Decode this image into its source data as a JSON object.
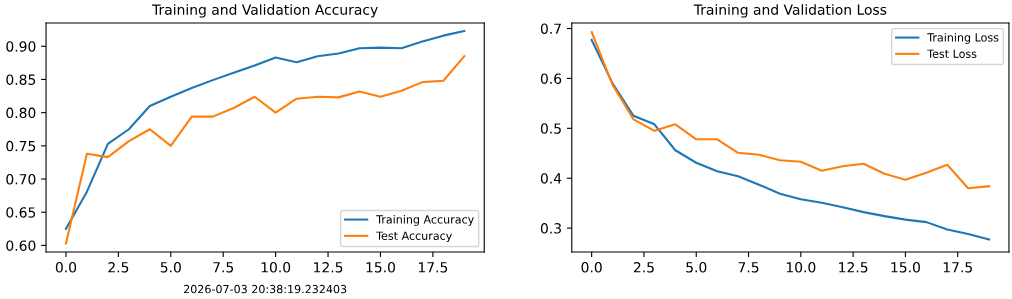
{
  "chart_data": [
    {
      "type": "line",
      "title": "Training and Validation Accuracy",
      "x": [
        0,
        1,
        2,
        3,
        4,
        5,
        6,
        7,
        8,
        9,
        10,
        11,
        12,
        13,
        14,
        15,
        16,
        17,
        18,
        19
      ],
      "series": [
        {
          "name": "Training Accuracy",
          "color": "#1f77b4",
          "values": [
            0.625,
            0.681,
            0.753,
            0.775,
            0.81,
            0.824,
            0.837,
            0.849,
            0.86,
            0.871,
            0.883,
            0.876,
            0.885,
            0.889,
            0.897,
            0.898,
            0.897,
            0.907,
            0.916,
            0.923
          ]
        },
        {
          "name": "Test Accuracy",
          "color": "#ff7f0e",
          "values": [
            0.603,
            0.738,
            0.733,
            0.757,
            0.775,
            0.75,
            0.794,
            0.794,
            0.807,
            0.824,
            0.8,
            0.821,
            0.824,
            0.823,
            0.832,
            0.824,
            0.833,
            0.846,
            0.848,
            0.885
          ]
        }
      ],
      "xlim": [
        -0.95,
        19.95
      ],
      "xticks": [
        {
          "value": 0,
          "label": "0.0"
        },
        {
          "value": 2.5,
          "label": "2.5"
        },
        {
          "value": 5,
          "label": "5.0"
        },
        {
          "value": 7.5,
          "label": "7.5"
        },
        {
          "value": 10,
          "label": "10.0"
        },
        {
          "value": 12.5,
          "label": "12.5"
        },
        {
          "value": 15,
          "label": "15.0"
        },
        {
          "value": 17.5,
          "label": "17.5"
        }
      ],
      "ylim": [
        0.59,
        0.935
      ],
      "yticks": [
        {
          "value": 0.6,
          "label": "0.60"
        },
        {
          "value": 0.65,
          "label": "0.65"
        },
        {
          "value": 0.7,
          "label": "0.70"
        },
        {
          "value": 0.75,
          "label": "0.75"
        },
        {
          "value": 0.8,
          "label": "0.80"
        },
        {
          "value": 0.85,
          "label": "0.85"
        },
        {
          "value": 0.9,
          "label": "0.90"
        }
      ],
      "legend": "bottom right",
      "grid": false,
      "annotations": [
        "2026-07-03 20:38:19.232403"
      ]
    },
    {
      "type": "line",
      "title": "Training and Validation Loss",
      "x": [
        0,
        1,
        2,
        3,
        4,
        5,
        6,
        7,
        8,
        9,
        10,
        11,
        12,
        13,
        14,
        15,
        16,
        17,
        18,
        19
      ],
      "series": [
        {
          "name": "Training Loss",
          "color": "#1f77b4",
          "values": [
            0.677,
            0.59,
            0.525,
            0.508,
            0.456,
            0.431,
            0.414,
            0.404,
            0.387,
            0.369,
            0.358,
            0.351,
            0.342,
            0.332,
            0.324,
            0.317,
            0.312,
            0.297,
            0.288,
            0.277
          ]
        },
        {
          "name": "Test Loss",
          "color": "#ff7f0e",
          "values": [
            0.693,
            0.587,
            0.518,
            0.495,
            0.508,
            0.478,
            0.478,
            0.451,
            0.447,
            0.436,
            0.433,
            0.415,
            0.424,
            0.429,
            0.409,
            0.397,
            0.411,
            0.427,
            0.38,
            0.384
          ]
        }
      ],
      "xlim": [
        -0.95,
        19.95
      ],
      "xticks": [
        {
          "value": 0,
          "label": "0.0"
        },
        {
          "value": 2.5,
          "label": "2.5"
        },
        {
          "value": 5,
          "label": "5.0"
        },
        {
          "value": 7.5,
          "label": "7.5"
        },
        {
          "value": 10,
          "label": "10.0"
        },
        {
          "value": 12.5,
          "label": "12.5"
        },
        {
          "value": 15,
          "label": "15.0"
        },
        {
          "value": 17.5,
          "label": "17.5"
        }
      ],
      "ylim": [
        0.252,
        0.711
      ],
      "yticks": [
        0.3,
        0.4,
        0.5,
        0.6,
        0.7
      ],
      "legend": "top right",
      "grid": false
    }
  ]
}
